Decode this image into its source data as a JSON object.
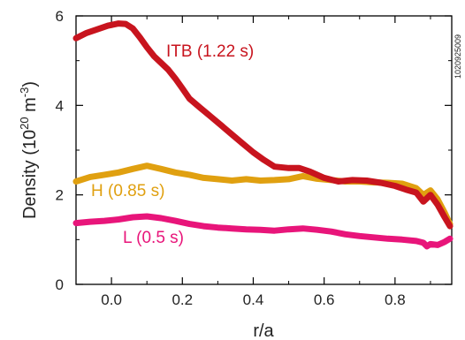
{
  "chart_data": {
    "type": "line",
    "xlabel": "r/a",
    "ylabel": "Density (10^20 m^-3)",
    "ylabel_parts": {
      "base": "Density (10",
      "exp1": "20",
      "mid": " m",
      "exp2": "-3",
      "end": ")"
    },
    "xlim": [
      -0.1,
      0.96
    ],
    "ylim": [
      0,
      6
    ],
    "xticks": [
      0.0,
      0.2,
      0.4,
      0.6,
      0.8
    ],
    "xtick_labels": [
      "0.0",
      "0.2",
      "0.4",
      "0.6",
      "0.8"
    ],
    "yticks": [
      0,
      2,
      4,
      6
    ],
    "ytick_labels": [
      "0",
      "2",
      "4",
      "6"
    ],
    "annotation": "1020925009",
    "series": [
      {
        "name": "ITB (1.22 s)",
        "color": "#c8141e",
        "x": [
          -0.1,
          -0.07,
          -0.04,
          -0.01,
          0.02,
          0.04,
          0.06,
          0.08,
          0.1,
          0.12,
          0.14,
          0.16,
          0.18,
          0.2,
          0.22,
          0.25,
          0.28,
          0.31,
          0.34,
          0.37,
          0.4,
          0.43,
          0.46,
          0.5,
          0.53,
          0.56,
          0.6,
          0.64,
          0.68,
          0.72,
          0.76,
          0.8,
          0.83,
          0.86,
          0.88,
          0.9,
          0.92,
          0.94,
          0.955
        ],
        "y": [
          5.5,
          5.62,
          5.7,
          5.78,
          5.83,
          5.82,
          5.72,
          5.52,
          5.3,
          5.1,
          4.95,
          4.8,
          4.6,
          4.38,
          4.15,
          3.95,
          3.75,
          3.55,
          3.35,
          3.15,
          2.95,
          2.78,
          2.63,
          2.6,
          2.6,
          2.52,
          2.38,
          2.3,
          2.33,
          2.32,
          2.27,
          2.2,
          2.12,
          2.05,
          1.85,
          2.0,
          1.78,
          1.5,
          1.3
        ]
      },
      {
        "name": "H (0.85 s)",
        "color": "#e0a010",
        "x": [
          -0.1,
          -0.06,
          -0.02,
          0.02,
          0.06,
          0.1,
          0.14,
          0.18,
          0.22,
          0.26,
          0.3,
          0.34,
          0.38,
          0.42,
          0.46,
          0.5,
          0.54,
          0.58,
          0.62,
          0.66,
          0.7,
          0.74,
          0.78,
          0.82,
          0.86,
          0.88,
          0.9,
          0.92,
          0.94,
          0.955
        ],
        "y": [
          2.3,
          2.4,
          2.45,
          2.5,
          2.58,
          2.65,
          2.58,
          2.5,
          2.45,
          2.38,
          2.35,
          2.32,
          2.35,
          2.32,
          2.33,
          2.35,
          2.42,
          2.36,
          2.33,
          2.3,
          2.3,
          2.28,
          2.27,
          2.25,
          2.15,
          2.0,
          2.1,
          1.9,
          1.6,
          1.35
        ]
      },
      {
        "name": "L (0.5 s)",
        "color": "#e8157a",
        "x": [
          -0.1,
          -0.06,
          -0.02,
          0.02,
          0.06,
          0.1,
          0.14,
          0.18,
          0.22,
          0.26,
          0.3,
          0.34,
          0.38,
          0.42,
          0.46,
          0.5,
          0.54,
          0.58,
          0.62,
          0.66,
          0.7,
          0.74,
          0.78,
          0.82,
          0.86,
          0.88,
          0.89,
          0.9,
          0.92,
          0.94,
          0.955
        ],
        "y": [
          1.37,
          1.4,
          1.42,
          1.45,
          1.5,
          1.52,
          1.48,
          1.42,
          1.35,
          1.3,
          1.27,
          1.25,
          1.23,
          1.22,
          1.2,
          1.23,
          1.25,
          1.22,
          1.18,
          1.12,
          1.08,
          1.05,
          1.02,
          1.0,
          0.97,
          0.93,
          0.85,
          0.9,
          0.88,
          0.95,
          1.02
        ]
      }
    ]
  }
}
